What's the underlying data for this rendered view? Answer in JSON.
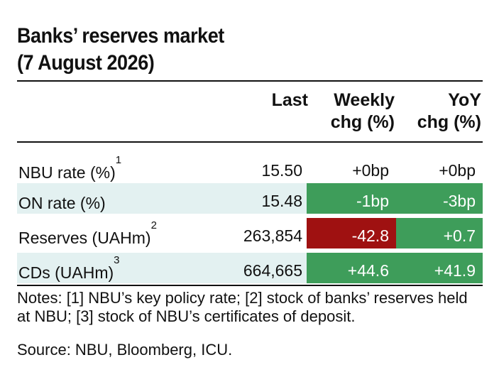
{
  "title": {
    "line1": "Banks’ reserves market",
    "line2": "(7 August 2026)"
  },
  "columns": {
    "last": "Last",
    "weekly_line1": "Weekly",
    "weekly_line2": "chg (%)",
    "yoy_line1": "YoY",
    "yoy_line2": "chg (%)"
  },
  "rows": [
    {
      "label": "NBU rate (%)",
      "footnote": "1",
      "last": "15.50",
      "weekly": "+0bp",
      "yoy": "+0bp",
      "weekly_status": "none",
      "yoy_status": "none"
    },
    {
      "label": "ON rate (%)",
      "footnote": "",
      "last": "15.48",
      "weekly": "-1bp",
      "yoy": "-3bp",
      "weekly_status": "positive",
      "yoy_status": "positive"
    },
    {
      "label": "Reserves (UAHm)",
      "footnote": "2",
      "last": "263,854",
      "weekly": "-42.8",
      "yoy": "+0.7",
      "weekly_status": "negative",
      "yoy_status": "positive"
    },
    {
      "label": "CDs (UAHm)",
      "footnote": "3",
      "last": "664,665",
      "weekly": "+44.6",
      "yoy": "+41.9",
      "weekly_status": "positive",
      "yoy_status": "positive"
    }
  ],
  "notes": "Notes: [1] NBU’s key policy rate; [2] stock of banks’ reserves held at NBU; [3] stock of NBU’s certificates of deposit.",
  "source": "Source: NBU, Bloomberg, ICU.",
  "colors": {
    "positive": "#3e9d5a",
    "negative": "#9f1111",
    "shaded_row": "#e3f1f1",
    "text": "#111111"
  }
}
